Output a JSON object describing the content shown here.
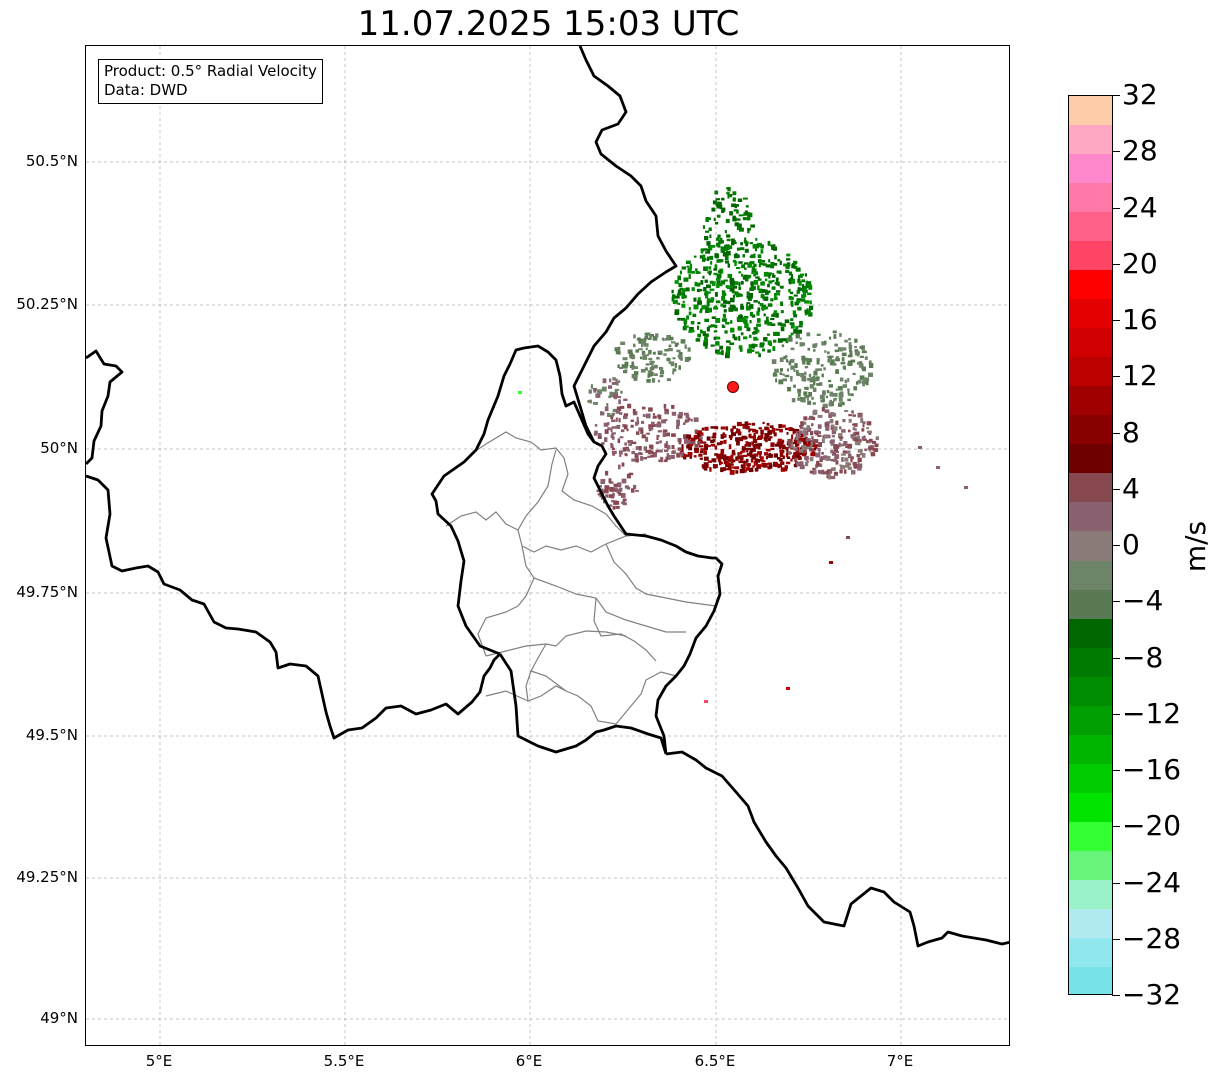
{
  "title": "11.07.2025 15:03 UTC",
  "info_box": {
    "line1": "Product: 0.5° Radial Velocity",
    "line2": "Data: DWD"
  },
  "map": {
    "lat_labels": [
      "50.5°N",
      "50.25°N",
      "50°N",
      "49.75°N",
      "49.5°N",
      "49.25°N",
      "49°N"
    ],
    "lon_labels": [
      "5°E",
      "5.5°E",
      "6°E",
      "6.5°E",
      "7°E"
    ],
    "radar_site": {
      "lon": 6.55,
      "lat": 50.11,
      "color": "#ff1a1a"
    },
    "border_color": "#000000",
    "district_color": "#808080",
    "grid_color": "#b0b0b0"
  },
  "colorbar": {
    "unit": "m/s",
    "min": -32,
    "max": 32,
    "tick_labels": [
      "32",
      "28",
      "24",
      "20",
      "16",
      "12",
      "8",
      "4",
      "0",
      "−4",
      "−8",
      "−12",
      "−16",
      "−20",
      "−24",
      "−28",
      "−32"
    ],
    "colors_top_to_bottom": [
      "#ffccaa",
      "#ffa8c4",
      "#ff88cc",
      "#ff78a8",
      "#ff6088",
      "#ff4466",
      "#ff0000",
      "#e40000",
      "#d00000",
      "#bb0000",
      "#a00000",
      "#880000",
      "#6e0000",
      "#884850",
      "#886070",
      "#8a7a78",
      "#6e8468",
      "#5a7a54",
      "#006600",
      "#007a00",
      "#008c00",
      "#009e00",
      "#00b400",
      "#00cc00",
      "#00e400",
      "#33ff33",
      "#66f57a",
      "#99f2c8",
      "#b0eaf0",
      "#90e8ee",
      "#77e2e8"
    ]
  }
}
